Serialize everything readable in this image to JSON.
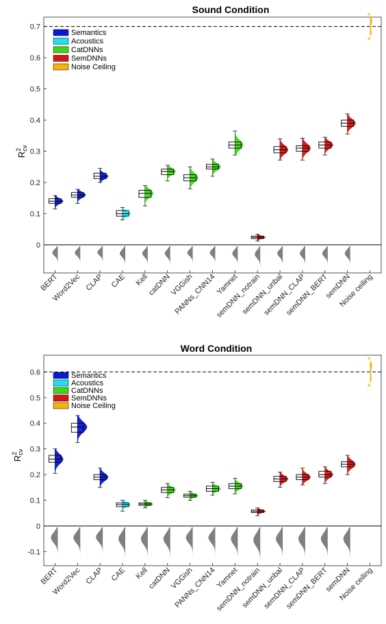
{
  "palette": {
    "Semantics": "#0a19d6",
    "Acoustics": "#1fe0f0",
    "CatDNNs": "#3fd61a",
    "SemDNNs": "#d81414",
    "Noise Ceiling": "#f5b40a",
    "null": "#7f7f7f"
  },
  "models": [
    "BERT",
    "Word2Vec",
    "CLAP",
    "CAE",
    "Kell",
    "catDNN",
    "VGGish",
    "PANNs_CNN14",
    "Yamnet",
    "semDNN_notrain",
    "semDNN_unbal",
    "semDNN_CLAP",
    "semDNN_BERT",
    "semDNN",
    "Noise ceiling"
  ],
  "legend": [
    "Semantics",
    "Acoustics",
    "CatDNNs",
    "SemDNNs",
    "Noise Ceiling"
  ],
  "chart_data": [
    {
      "type": "box",
      "title": "Sound Condition",
      "ylabel": "R2cv",
      "ylabel_main": "R",
      "ylabel_sup": "2",
      "ylabel_sub": "cv",
      "ylim": [
        -0.09,
        0.73
      ],
      "yticks": [
        0,
        0.1,
        0.2,
        0.3,
        0.4,
        0.5,
        0.6,
        0.7
      ],
      "ytick_labels": [
        "0",
        "0.1",
        "0.2",
        "0.3",
        "0.4",
        "0.5",
        "0.6",
        "0.7"
      ],
      "noise_ceiling": 0.7,
      "legend_placement": "top-left",
      "series": [
        {
          "name": "BERT",
          "group": "Semantics",
          "median": 0.14,
          "q1": 0.133,
          "q3": 0.148,
          "lo": 0.115,
          "hi": 0.158
        },
        {
          "name": "Word2Vec",
          "group": "Semantics",
          "median": 0.16,
          "q1": 0.153,
          "q3": 0.168,
          "lo": 0.133,
          "hi": 0.178
        },
        {
          "name": "CLAP",
          "group": "Semantics",
          "median": 0.22,
          "q1": 0.212,
          "q3": 0.23,
          "lo": 0.2,
          "hi": 0.245
        },
        {
          "name": "CAE",
          "group": "Acoustics",
          "median": 0.1,
          "q1": 0.092,
          "q3": 0.11,
          "lo": 0.08,
          "hi": 0.12
        },
        {
          "name": "Kell",
          "group": "CatDNNs",
          "median": 0.165,
          "q1": 0.152,
          "q3": 0.175,
          "lo": 0.125,
          "hi": 0.19
        },
        {
          "name": "catDNN",
          "group": "CatDNNs",
          "median": 0.235,
          "q1": 0.225,
          "q3": 0.243,
          "lo": 0.205,
          "hi": 0.255
        },
        {
          "name": "VGGish",
          "group": "CatDNNs",
          "median": 0.215,
          "q1": 0.205,
          "q3": 0.225,
          "lo": 0.18,
          "hi": 0.25
        },
        {
          "name": "PANNs_CNN14",
          "group": "CatDNNs",
          "median": 0.25,
          "q1": 0.243,
          "q3": 0.258,
          "lo": 0.22,
          "hi": 0.275
        },
        {
          "name": "Yamnet",
          "group": "CatDNNs",
          "median": 0.32,
          "q1": 0.31,
          "q3": 0.33,
          "lo": 0.288,
          "hi": 0.365
        },
        {
          "name": "semDNN_notrain",
          "group": "SemDNNs",
          "median": 0.024,
          "q1": 0.02,
          "q3": 0.028,
          "lo": 0.012,
          "hi": 0.034
        },
        {
          "name": "semDNN_unbal",
          "group": "SemDNNs",
          "median": 0.305,
          "q1": 0.295,
          "q3": 0.315,
          "lo": 0.272,
          "hi": 0.34
        },
        {
          "name": "semDNN_CLAP",
          "group": "SemDNNs",
          "median": 0.31,
          "q1": 0.3,
          "q3": 0.318,
          "lo": 0.272,
          "hi": 0.342
        },
        {
          "name": "semDNN_BERT",
          "group": "SemDNNs",
          "median": 0.32,
          "q1": 0.31,
          "q3": 0.33,
          "lo": 0.288,
          "hi": 0.345
        },
        {
          "name": "semDNN",
          "group": "SemDNNs",
          "median": 0.39,
          "q1": 0.38,
          "q3": 0.4,
          "lo": 0.355,
          "hi": 0.42
        }
      ]
    },
    {
      "type": "box",
      "title": "Word Condition",
      "ylabel": "R2cv",
      "ylabel_main": "R",
      "ylabel_sup": "2",
      "ylabel_sub": "cv",
      "ylim": [
        -0.155,
        0.665
      ],
      "yticks": [
        -0.1,
        0,
        0.1,
        0.2,
        0.3,
        0.4,
        0.5,
        0.6
      ],
      "ytick_labels": [
        "-0.1",
        "0",
        "0.1",
        "0.2",
        "0.3",
        "0.4",
        "0.5",
        "0.6"
      ],
      "noise_ceiling": 0.6,
      "legend_placement": "top-left",
      "series": [
        {
          "name": "BERT",
          "group": "Semantics",
          "median": 0.26,
          "q1": 0.248,
          "q3": 0.275,
          "lo": 0.205,
          "hi": 0.3
        },
        {
          "name": "Word2Vec",
          "group": "Semantics",
          "median": 0.385,
          "q1": 0.365,
          "q3": 0.4,
          "lo": 0.325,
          "hi": 0.43
        },
        {
          "name": "CLAP",
          "group": "Semantics",
          "median": 0.19,
          "q1": 0.18,
          "q3": 0.2,
          "lo": 0.15,
          "hi": 0.225
        },
        {
          "name": "CAE",
          "group": "Acoustics",
          "median": 0.083,
          "q1": 0.075,
          "q3": 0.09,
          "lo": 0.058,
          "hi": 0.1
        },
        {
          "name": "Kell",
          "group": "CatDNNs",
          "median": 0.085,
          "q1": 0.08,
          "q3": 0.09,
          "lo": 0.07,
          "hi": 0.1
        },
        {
          "name": "catDNN",
          "group": "CatDNNs",
          "median": 0.14,
          "q1": 0.13,
          "q3": 0.15,
          "lo": 0.11,
          "hi": 0.165
        },
        {
          "name": "VGGish",
          "group": "CatDNNs",
          "median": 0.118,
          "q1": 0.112,
          "q3": 0.124,
          "lo": 0.1,
          "hi": 0.135
        },
        {
          "name": "PANNs_CNN14",
          "group": "CatDNNs",
          "median": 0.145,
          "q1": 0.135,
          "q3": 0.155,
          "lo": 0.12,
          "hi": 0.17
        },
        {
          "name": "Yamnet",
          "group": "CatDNNs",
          "median": 0.155,
          "q1": 0.145,
          "q3": 0.165,
          "lo": 0.125,
          "hi": 0.185
        },
        {
          "name": "semDNN_notrain",
          "group": "SemDNNs",
          "median": 0.057,
          "q1": 0.052,
          "q3": 0.062,
          "lo": 0.04,
          "hi": 0.07
        },
        {
          "name": "semDNN_unbal",
          "group": "SemDNNs",
          "median": 0.183,
          "q1": 0.173,
          "q3": 0.193,
          "lo": 0.15,
          "hi": 0.21
        },
        {
          "name": "semDNN_CLAP",
          "group": "SemDNNs",
          "median": 0.19,
          "q1": 0.18,
          "q3": 0.2,
          "lo": 0.16,
          "hi": 0.225
        },
        {
          "name": "semDNN_BERT",
          "group": "SemDNNs",
          "median": 0.2,
          "q1": 0.19,
          "q3": 0.213,
          "lo": 0.165,
          "hi": 0.23
        },
        {
          "name": "semDNN",
          "group": "SemDNNs",
          "median": 0.24,
          "q1": 0.23,
          "q3": 0.25,
          "lo": 0.2,
          "hi": 0.275
        }
      ]
    }
  ]
}
